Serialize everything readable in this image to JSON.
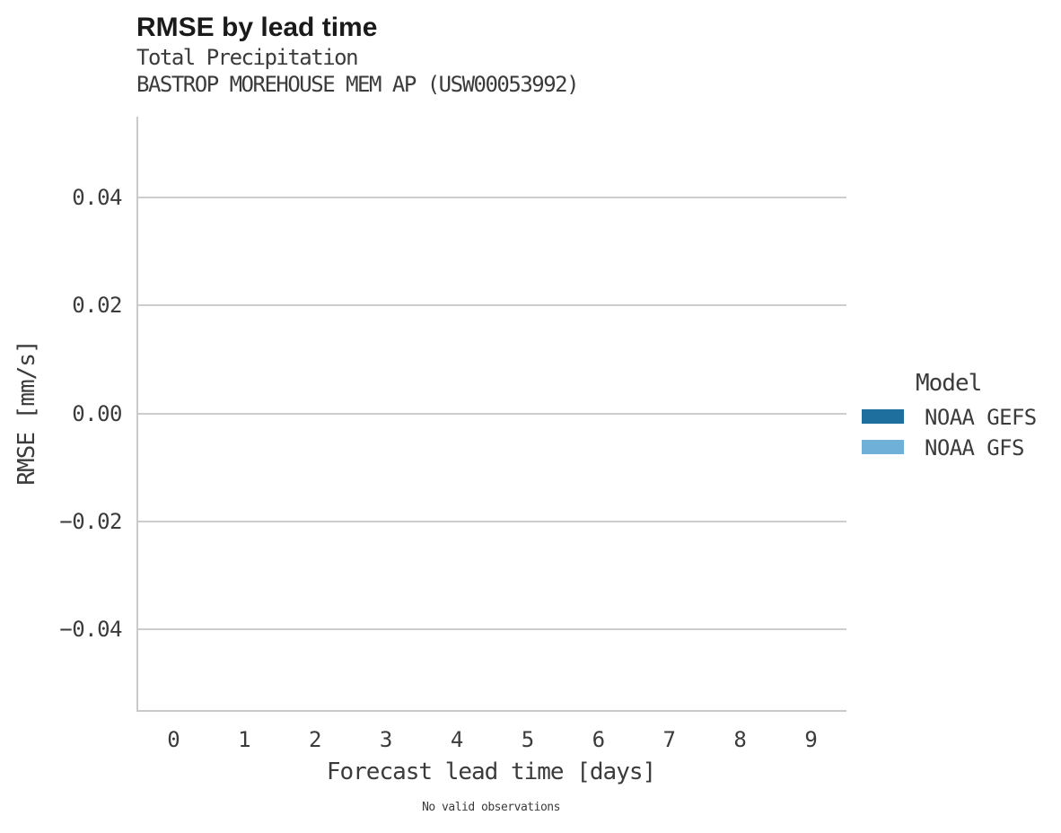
{
  "header": {
    "title": "RMSE by lead time",
    "subtitle_variable": "Total Precipitation",
    "subtitle_station": "BASTROP MOREHOUSE MEM AP (USW00053992)"
  },
  "chart_data": {
    "type": "line",
    "title": "RMSE by lead time",
    "subtitle": [
      "Total Precipitation",
      "BASTROP MOREHOUSE MEM AP (USW00053992)"
    ],
    "xlabel": "Forecast lead time [days]",
    "ylabel": "RMSE [mm/s]",
    "xlim": [
      -0.5,
      9.5
    ],
    "ylim": [
      -0.055,
      0.055
    ],
    "xticks": [
      0,
      1,
      2,
      3,
      4,
      5,
      6,
      7,
      8,
      9
    ],
    "xtick_labels": [
      "0",
      "1",
      "2",
      "3",
      "4",
      "5",
      "6",
      "7",
      "8",
      "9"
    ],
    "yticks": [
      0.04,
      0.02,
      0.0,
      -0.02,
      -0.04
    ],
    "ytick_labels": [
      "0.04",
      "0.02",
      "0.00",
      "−0.02",
      "−0.04"
    ],
    "grid": "horizontal-only",
    "legend_position": "right-outside",
    "series": [
      {
        "name": "NOAA GEFS",
        "color": "#1f6f9e",
        "x": [],
        "values": []
      },
      {
        "name": "NOAA GFS",
        "color": "#6fb0d8",
        "x": [],
        "values": []
      }
    ],
    "annotation": "No valid observations",
    "note": "Plot area is empty: no data points are drawn for either series."
  },
  "legend": {
    "title": "Model",
    "items": [
      {
        "label": "NOAA GEFS",
        "color": "#1f6f9e"
      },
      {
        "label": "NOAA GFS",
        "color": "#6fb0d8"
      }
    ]
  },
  "caption": "No valid observations",
  "colors": {
    "spine": "#c9c9c9",
    "gridline": "#cdcdcd",
    "title_text": "#1a1a1a",
    "body_text": "#3b3b3b",
    "background": "#ffffff"
  }
}
